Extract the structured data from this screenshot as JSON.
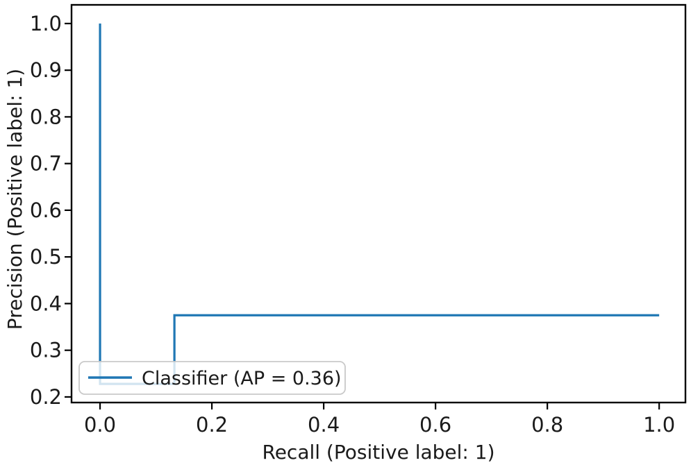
{
  "figure": {
    "kind": "precision-recall-plot",
    "background": "#ffffff"
  },
  "chart_data": {
    "type": "line",
    "title": "",
    "xlabel": "Recall (Positive label: 1)",
    "ylabel": "Precision (Positive label: 1)",
    "xlim": [
      -0.051,
      1.047
    ],
    "ylim": [
      0.188,
      1.04
    ],
    "x_ticks": [
      0.0,
      0.2,
      0.4,
      0.6,
      0.8,
      1.0
    ],
    "x_tick_labels": [
      "0.0",
      "0.2",
      "0.4",
      "0.6",
      "0.8",
      "1.0"
    ],
    "y_ticks": [
      0.2,
      0.3,
      0.4,
      0.5,
      0.6,
      0.7,
      0.8,
      0.9,
      1.0
    ],
    "y_tick_labels": [
      "0.2",
      "0.3",
      "0.4",
      "0.5",
      "0.6",
      "0.7",
      "0.8",
      "0.9",
      "1.0"
    ],
    "grid": false,
    "ap": 0.36,
    "legend": {
      "position": "lower left",
      "entries": [
        {
          "label": "Classifier (AP = 0.36)",
          "color": "#1f77b4"
        }
      ]
    },
    "series": [
      {
        "name": "Classifier (AP = 0.36)",
        "color": "#1f77b4",
        "drawstyle": "steps",
        "points": [
          [
            0.0,
            1.0
          ],
          [
            0.0,
            0.228
          ],
          [
            0.133,
            0.228
          ],
          [
            0.133,
            0.375
          ],
          [
            1.0,
            0.375
          ]
        ]
      }
    ]
  },
  "colors": {
    "line": "#1f77b4",
    "axis": "#000000",
    "text": "#1a1a1a",
    "legend_border": "#c9c9c9"
  }
}
